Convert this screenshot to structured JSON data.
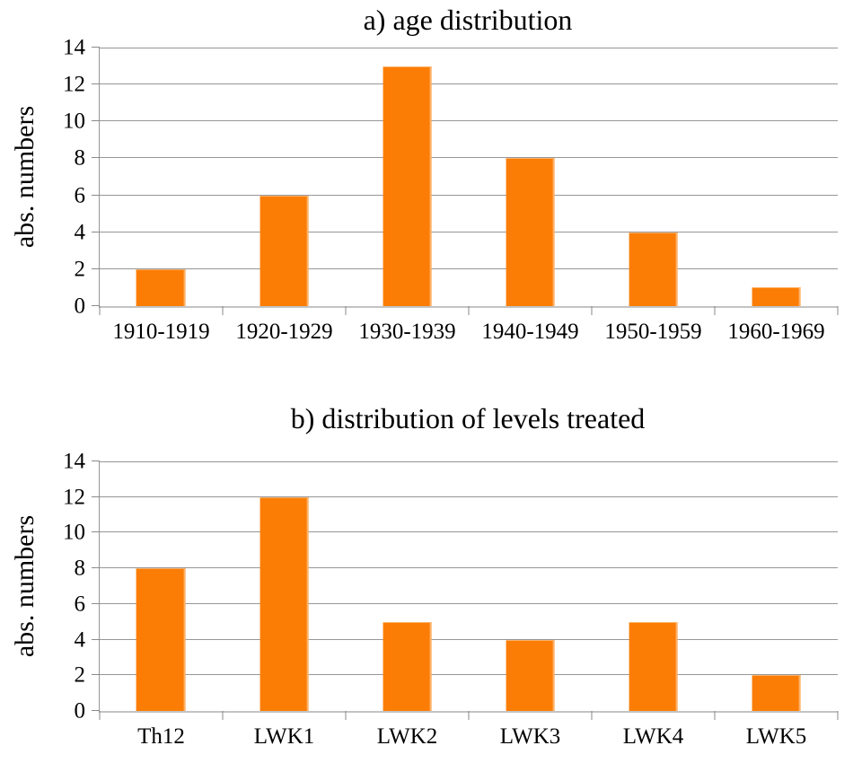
{
  "figure": {
    "background": "#ffffff",
    "text_color": "#000000",
    "bar_color": "#fb7d05",
    "bar_highlight_color": "#fdb269",
    "gridline_color": "#969696",
    "axis_line_color": "#c3c3c3",
    "tick_color": "#8a8a8a",
    "bar_slot_ratio": 0.4
  },
  "chart_data": [
    {
      "type": "bar",
      "title": "a) age distribution",
      "ylabel": "abs. numbers",
      "xlabel": "",
      "categories": [
        "1910-1919",
        "1920-1929",
        "1930-1939",
        "1940-1949",
        "1950-1959",
        "1960-1969"
      ],
      "values": [
        2,
        6,
        13,
        8,
        4,
        1
      ],
      "ylim": [
        0,
        14
      ],
      "ytick_step": 2,
      "yticks": [
        0,
        2,
        4,
        6,
        8,
        10,
        12,
        14
      ],
      "grid": true,
      "legend": "none"
    },
    {
      "type": "bar",
      "title": "b) distribution of levels treated",
      "ylabel": "abs. numbers",
      "xlabel": "",
      "categories": [
        "Th12",
        "LWK1",
        "LWK2",
        "LWK3",
        "LWK4",
        "LWK5"
      ],
      "values": [
        8,
        12,
        5,
        4,
        5,
        2
      ],
      "ylim": [
        0,
        14
      ],
      "ytick_step": 2,
      "yticks": [
        0,
        2,
        4,
        6,
        8,
        10,
        12,
        14
      ],
      "grid": true,
      "legend": "none"
    }
  ]
}
